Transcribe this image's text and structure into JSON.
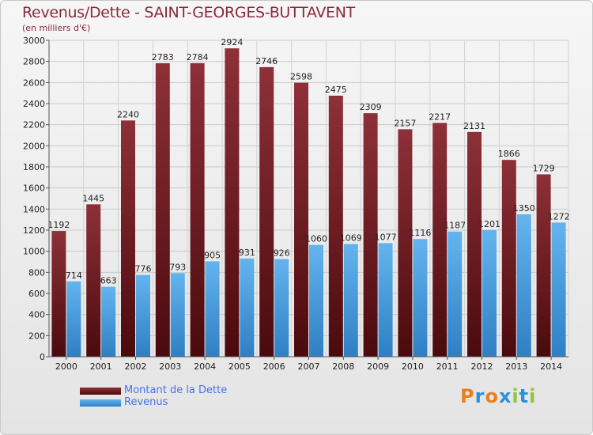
{
  "title": "Revenus/Dette - SAINT-GEORGES-BUTTAVENT",
  "subtitle": "(en milliers d'€)",
  "legend": [
    {
      "label": "Montant de la Dette",
      "color": "#6e1a1f"
    },
    {
      "label": "Revenus",
      "color": "#4aa3e6"
    }
  ],
  "logo": {
    "letters": [
      "P",
      "r",
      "o",
      "x",
      "i",
      "t",
      "i"
    ],
    "colors": [
      "#e87e1f",
      "#2c8fd8",
      "#e87e1f",
      "#2c8fd8",
      "#8cc63e",
      "#2c8fd8",
      "#8cc63e"
    ]
  },
  "chart_data": {
    "type": "bar",
    "title": "Revenus/Dette - SAINT-GEORGES-BUTTAVENT",
    "subtitle": "(en milliers d'€)",
    "categories": [
      "2000",
      "2001",
      "2002",
      "2003",
      "2004",
      "2005",
      "2006",
      "2007",
      "2008",
      "2009",
      "2010",
      "2011",
      "2012",
      "2013",
      "2014"
    ],
    "series": [
      {
        "name": "Montant de la Dette",
        "color": "#6e1a1f",
        "values": [
          1192,
          1445,
          2240,
          2783,
          2784,
          2924,
          2746,
          2598,
          2475,
          2309,
          2157,
          2217,
          2131,
          1866,
          1729
        ]
      },
      {
        "name": "Revenus",
        "color": "#4aa3e6",
        "values": [
          714,
          663,
          776,
          793,
          905,
          931,
          926,
          1060,
          1069,
          1077,
          1116,
          1187,
          1201,
          1350,
          1272
        ]
      }
    ],
    "ylim": [
      0,
      3000
    ],
    "ytick_step": 200,
    "grid": true,
    "legend_position": "bottom-left"
  }
}
